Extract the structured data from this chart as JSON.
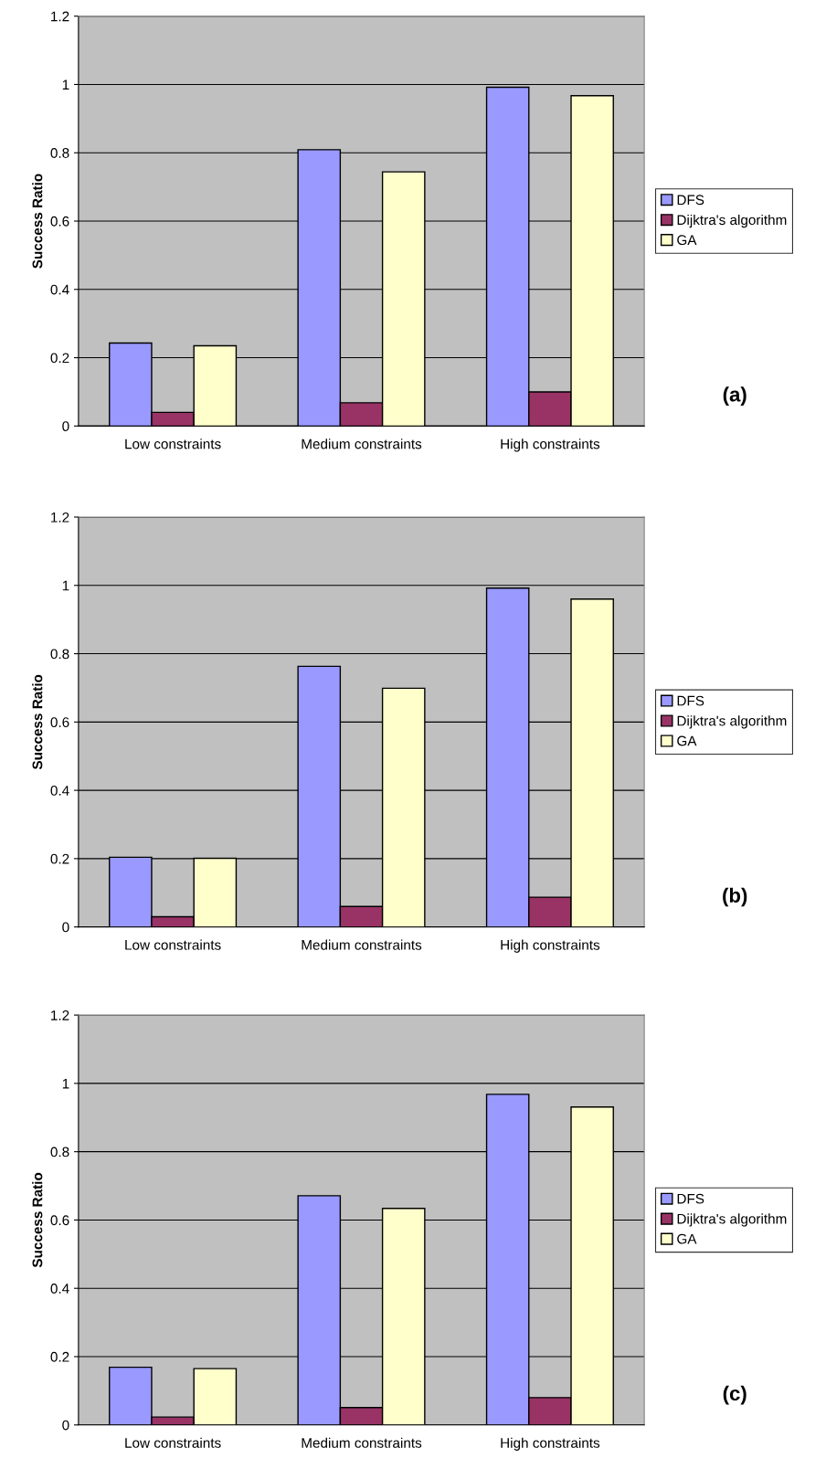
{
  "chart_data": [
    {
      "type": "bar",
      "ylabel": "Success Ratio",
      "categories": [
        "Low constraints",
        "Medium constraints",
        "High constraints"
      ],
      "series": [
        {
          "name": "DFS",
          "color": "#9999ff",
          "values": [
            0.243,
            0.809,
            0.992
          ]
        },
        {
          "name": "Dijktra's algorithm",
          "color": "#993366",
          "values": [
            0.04,
            0.068,
            0.1
          ]
        },
        {
          "name": "GA",
          "color": "#ffffcc",
          "values": [
            0.235,
            0.744,
            0.967
          ]
        }
      ],
      "ylim": [
        0,
        1.2
      ],
      "yticks": [
        0,
        0.2,
        0.4,
        0.6,
        0.8,
        1,
        1.2
      ],
      "grid": "y",
      "legend": "right",
      "annotations": [
        "(a)"
      ]
    },
    {
      "type": "bar",
      "ylabel": "Success Ratio",
      "categories": [
        "Low constraints",
        "Medium constraints",
        "High constraints"
      ],
      "series": [
        {
          "name": "DFS",
          "color": "#9999ff",
          "values": [
            0.204,
            0.763,
            0.992
          ]
        },
        {
          "name": "Dijktra's algorithm",
          "color": "#993366",
          "values": [
            0.03,
            0.06,
            0.087
          ]
        },
        {
          "name": "GA",
          "color": "#ffffcc",
          "values": [
            0.201,
            0.699,
            0.96
          ]
        }
      ],
      "ylim": [
        0,
        1.2
      ],
      "yticks": [
        0,
        0.2,
        0.4,
        0.6,
        0.8,
        1,
        1.2
      ],
      "grid": "y",
      "legend": "right",
      "annotations": [
        "(b)"
      ]
    },
    {
      "type": "bar",
      "ylabel": "Success Ratio",
      "categories": [
        "Low constraints",
        "Medium constraints",
        "High constraints"
      ],
      "series": [
        {
          "name": "DFS",
          "color": "#9999ff",
          "values": [
            0.169,
            0.671,
            0.968
          ]
        },
        {
          "name": "Dijktra's algorithm",
          "color": "#993366",
          "values": [
            0.023,
            0.051,
            0.08
          ]
        },
        {
          "name": "GA",
          "color": "#ffffcc",
          "values": [
            0.165,
            0.634,
            0.931
          ]
        }
      ],
      "ylim": [
        0,
        1.2
      ],
      "yticks": [
        0,
        0.2,
        0.4,
        0.6,
        0.8,
        1,
        1.2
      ],
      "grid": "y",
      "legend": "right",
      "annotations": [
        "(c)"
      ]
    }
  ]
}
